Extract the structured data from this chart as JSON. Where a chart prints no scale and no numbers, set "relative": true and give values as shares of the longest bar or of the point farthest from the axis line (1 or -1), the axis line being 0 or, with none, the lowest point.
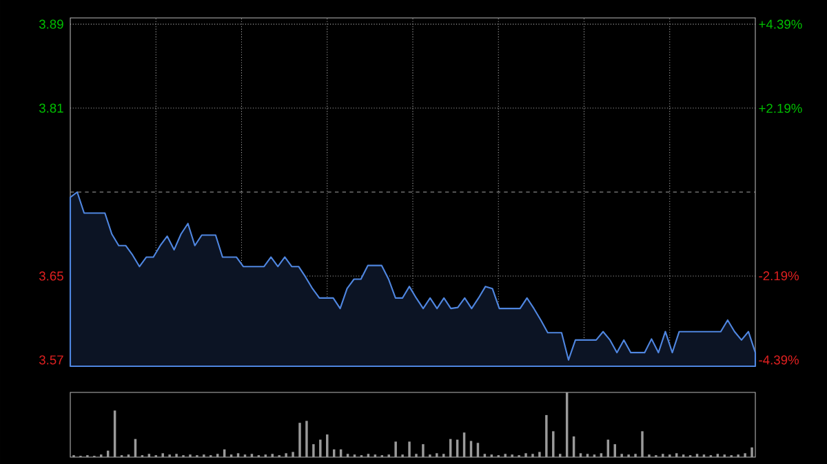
{
  "chart_data": [
    {
      "type": "area",
      "categories": [
        null,
        null,
        null,
        null,
        null,
        null,
        null,
        null,
        null,
        null,
        null,
        null,
        null,
        null,
        null,
        null,
        null,
        null,
        null,
        null,
        null,
        null,
        null,
        null,
        null,
        null,
        null,
        null,
        null,
        null,
        null,
        null,
        null,
        null,
        null,
        null,
        null,
        null,
        null,
        null,
        null,
        null,
        null,
        null,
        null,
        null,
        null,
        null,
        null,
        null,
        null,
        null,
        null,
        null,
        null,
        null,
        null,
        null,
        null,
        null,
        null,
        null,
        null,
        null,
        null,
        null,
        null,
        null,
        null,
        null,
        null,
        null,
        null,
        null,
        null,
        null,
        null,
        null,
        null,
        null,
        null,
        null,
        null,
        null,
        null,
        null,
        null,
        null,
        null,
        null,
        null,
        null,
        null,
        null,
        null,
        null,
        null,
        null,
        null,
        null
      ],
      "values": [
        3.725,
        3.73,
        3.71,
        3.71,
        3.71,
        3.71,
        3.69,
        3.679,
        3.679,
        3.67,
        3.659,
        3.668,
        3.668,
        3.679,
        3.688,
        3.675,
        3.69,
        3.7,
        3.679,
        3.689,
        3.689,
        3.689,
        3.668,
        3.668,
        3.668,
        3.659,
        3.659,
        3.659,
        3.659,
        3.668,
        3.659,
        3.668,
        3.659,
        3.659,
        3.649,
        3.638,
        3.629,
        3.629,
        3.629,
        3.619,
        3.638,
        3.647,
        3.647,
        3.66,
        3.66,
        3.66,
        3.647,
        3.629,
        3.629,
        3.64,
        3.629,
        3.619,
        3.629,
        3.619,
        3.629,
        3.619,
        3.62,
        3.629,
        3.619,
        3.629,
        3.64,
        3.638,
        3.619,
        3.619,
        3.619,
        3.619,
        3.629,
        3.619,
        3.608,
        3.596,
        3.596,
        3.596,
        3.57,
        3.589,
        3.589,
        3.589,
        3.589,
        3.597,
        3.589,
        3.577,
        3.589,
        3.577,
        3.577,
        3.577,
        3.59,
        3.577,
        3.597,
        3.577,
        3.597,
        3.597,
        3.597,
        3.597,
        3.597,
        3.597,
        3.597,
        3.608,
        3.597,
        3.589,
        3.597,
        3.577
      ],
      "color": "#4f86e0",
      "ylim": [
        3.564,
        3.896
      ],
      "yticks": [
        3.57,
        3.65,
        3.81,
        3.89
      ],
      "y2lim": [
        -4.555,
        4.555
      ],
      "y2ticks": [
        {
          "value": -4.39,
          "label": "-4.39%"
        },
        {
          "value": -2.19,
          "label": "-2.19%"
        },
        {
          "value": 2.19,
          "label": "+2.19%"
        },
        {
          "value": 4.39,
          "label": "+4.39%"
        }
      ],
      "ref_lines": [
        {
          "axis": "y",
          "value": 3.73,
          "line_style": "dashed"
        }
      ],
      "grid": true
    },
    {
      "type": "bar",
      "categories": [
        null,
        null,
        null,
        null,
        null,
        null,
        null,
        null,
        null,
        null,
        null,
        null,
        null,
        null,
        null,
        null,
        null,
        null,
        null,
        null,
        null,
        null,
        null,
        null,
        null,
        null,
        null,
        null,
        null,
        null,
        null,
        null,
        null,
        null,
        null,
        null,
        null,
        null,
        null,
        null,
        null,
        null,
        null,
        null,
        null,
        null,
        null,
        null,
        null,
        null,
        null,
        null,
        null,
        null,
        null,
        null,
        null,
        null,
        null,
        null,
        null,
        null,
        null,
        null,
        null,
        null,
        null,
        null,
        null,
        null,
        null,
        null,
        null,
        null,
        null,
        null,
        null,
        null,
        null,
        null,
        null,
        null,
        null,
        null,
        null,
        null,
        null,
        null,
        null,
        null,
        null,
        null,
        null,
        null,
        null,
        null,
        null,
        null,
        null,
        null
      ],
      "values": [
        0.03,
        0.02,
        0.03,
        0.02,
        0.04,
        0.1,
        0.72,
        0.03,
        0.04,
        0.28,
        0.03,
        0.05,
        0.03,
        0.06,
        0.04,
        0.05,
        0.03,
        0.04,
        0.03,
        0.04,
        0.03,
        0.05,
        0.12,
        0.04,
        0.06,
        0.04,
        0.05,
        0.03,
        0.04,
        0.05,
        0.03,
        0.06,
        0.08,
        0.53,
        0.56,
        0.2,
        0.27,
        0.35,
        0.12,
        0.12,
        0.05,
        0.04,
        0.03,
        0.05,
        0.04,
        0.03,
        0.04,
        0.24,
        0.04,
        0.24,
        0.05,
        0.2,
        0.04,
        0.06,
        0.05,
        0.28,
        0.27,
        0.38,
        0.25,
        0.22,
        0.05,
        0.04,
        0.03,
        0.05,
        0.04,
        0.03,
        0.06,
        0.05,
        0.08,
        0.65,
        0.4,
        0.05,
        1.0,
        0.32,
        0.06,
        0.05,
        0.04,
        0.06,
        0.27,
        0.2,
        0.05,
        0.04,
        0.05,
        0.4,
        0.04,
        0.03,
        0.05,
        0.04,
        0.06,
        0.04,
        0.03,
        0.05,
        0.04,
        0.03,
        0.05,
        0.04,
        0.03,
        0.04,
        0.06,
        0.15
      ],
      "color": "#9a9a9a",
      "relative": true
    }
  ]
}
